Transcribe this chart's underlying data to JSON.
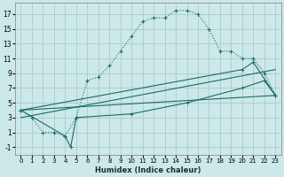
{
  "xlabel": "Humidex (Indice chaleur)",
  "background_color": "#cce8e8",
  "grid_color": "#aacccc",
  "line_color": "#1a6b6b",
  "xlim": [
    -0.5,
    23.5
  ],
  "ylim": [
    -2,
    18.5
  ],
  "xticks": [
    0,
    1,
    2,
    3,
    4,
    5,
    6,
    7,
    8,
    9,
    10,
    11,
    12,
    13,
    14,
    15,
    16,
    17,
    18,
    19,
    20,
    21,
    22,
    23
  ],
  "yticks": [
    -1,
    1,
    3,
    5,
    7,
    9,
    11,
    13,
    15,
    17
  ],
  "line1_x": [
    0,
    1,
    2,
    3,
    4,
    5,
    6,
    7,
    8,
    9,
    10,
    11,
    12,
    13,
    14,
    15,
    16,
    17,
    18,
    19,
    20,
    21,
    22,
    23
  ],
  "line1_y": [
    4,
    3,
    1,
    1,
    0.5,
    3,
    8,
    8.5,
    10,
    12,
    14,
    16,
    16.5,
    16.5,
    17.5,
    17.5,
    17,
    15,
    12,
    12,
    11,
    11,
    9,
    6
  ],
  "line2_x": [
    0,
    4,
    4.5,
    5,
    10,
    15,
    20,
    22,
    23
  ],
  "line2_y": [
    4,
    0.5,
    -1,
    3,
    3.5,
    5,
    7,
    8,
    6
  ],
  "line3_x": [
    0,
    23
  ],
  "line3_y": [
    4,
    6
  ],
  "line4_x": [
    0,
    23
  ],
  "line4_y": [
    3,
    9.5
  ],
  "line5_x": [
    0,
    20,
    21,
    23
  ],
  "line5_y": [
    4,
    9.5,
    10.5,
    6
  ]
}
